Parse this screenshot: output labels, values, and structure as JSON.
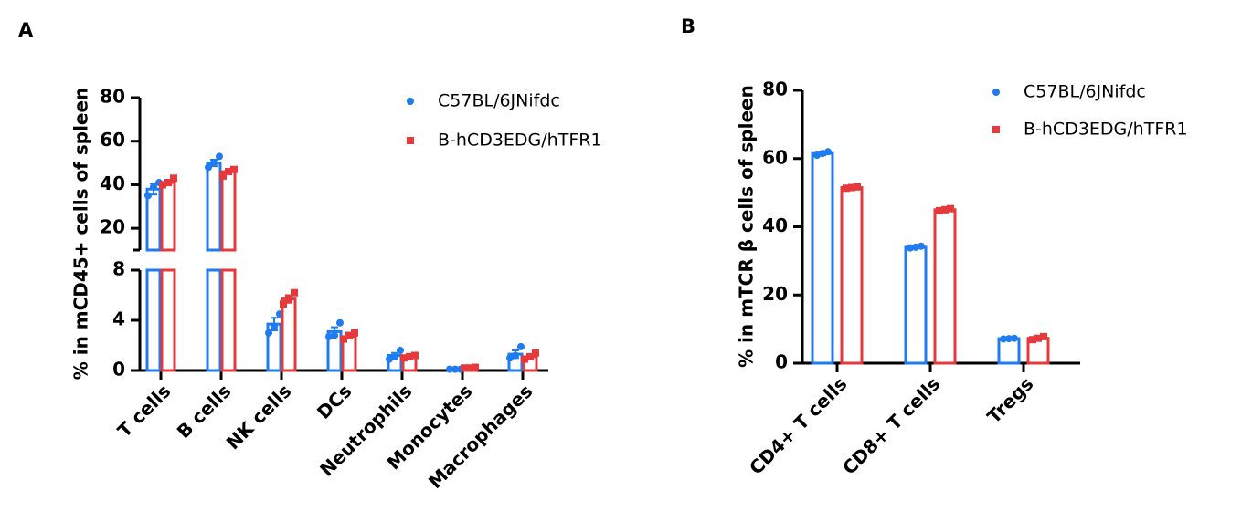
{
  "chart_data": [
    {
      "type": "bar",
      "panel_label": "A",
      "y_label": "% in mCD45+ cells of spleen",
      "categories": [
        "T cells",
        "B cells",
        "NK cells",
        "DCs",
        "Neutrophils",
        "Monocytes",
        "Macrophages"
      ],
      "axis_segments": [
        {
          "ylim": [
            0,
            8
          ],
          "yticks": [
            0,
            4,
            8
          ]
        },
        {
          "ylim": [
            10,
            80
          ],
          "yticks": [
            20,
            40,
            60,
            80
          ]
        }
      ],
      "series": [
        {
          "name": "C57BL/6JNifdc",
          "color": "#1f7bf0",
          "marker": "circle",
          "values": [
            38,
            50,
            3.7,
            3.1,
            1.2,
            0.1,
            1.3
          ],
          "errors": [
            2.5,
            1.5,
            0.5,
            0.35,
            0.2,
            0.02,
            0.3
          ],
          "points": [
            [
              35,
              39,
              41
            ],
            [
              48,
              50,
              53
            ],
            [
              3,
              3.5,
              4.5
            ],
            [
              2.7,
              2.8,
              3.8
            ],
            [
              0.9,
              1.1,
              1.6
            ],
            [
              0.1,
              0.1,
              0.1
            ],
            [
              1.0,
              1.2,
              1.9
            ]
          ]
        },
        {
          "name": "B-hCD3EDG/hTFR1",
          "color": "#e5393b",
          "marker": "square",
          "values": [
            41,
            46,
            5.7,
            2.7,
            1.1,
            0.2,
            1.1
          ],
          "errors": [
            1.2,
            1.2,
            0.3,
            0.15,
            0.06,
            0.02,
            0.15
          ],
          "points": [
            [
              40,
              41,
              43
            ],
            [
              44,
              46,
              47
            ],
            [
              5.3,
              5.7,
              6.2
            ],
            [
              2.5,
              2.8,
              3.0
            ],
            [
              1.0,
              1.1,
              1.2
            ],
            [
              0.2,
              0.2,
              0.25
            ],
            [
              0.9,
              1.1,
              1.4
            ]
          ]
        }
      ]
    },
    {
      "type": "bar",
      "panel_label": "B",
      "y_label": "% in mTCR β cells of spleen",
      "categories": [
        "CD4+ T cells",
        "CD8+ T cells",
        "Tregs"
      ],
      "axis_segments": [
        {
          "ylim": [
            0,
            80
          ],
          "yticks": [
            0,
            20,
            40,
            60,
            80
          ]
        }
      ],
      "series": [
        {
          "name": "C57BL/6JNifdc",
          "color": "#1f7bf0",
          "marker": "circle",
          "values": [
            61.5,
            34,
            7.2
          ],
          "errors": [
            0.5,
            0.3,
            0.2
          ],
          "points": [
            [
              61,
              61.5,
              62
            ],
            [
              33.8,
              34,
              34.3
            ],
            [
              7.1,
              7.2,
              7.3
            ]
          ]
        },
        {
          "name": "B-hCD3EDG/hTFR1",
          "color": "#e5393b",
          "marker": "square",
          "values": [
            51.5,
            45,
            7.3
          ],
          "errors": [
            0.3,
            0.3,
            0.4
          ],
          "points": [
            [
              51.3,
              51.5,
              51.7
            ],
            [
              44.7,
              45,
              45.3
            ],
            [
              6.9,
              7.3,
              7.8
            ]
          ]
        }
      ]
    }
  ]
}
